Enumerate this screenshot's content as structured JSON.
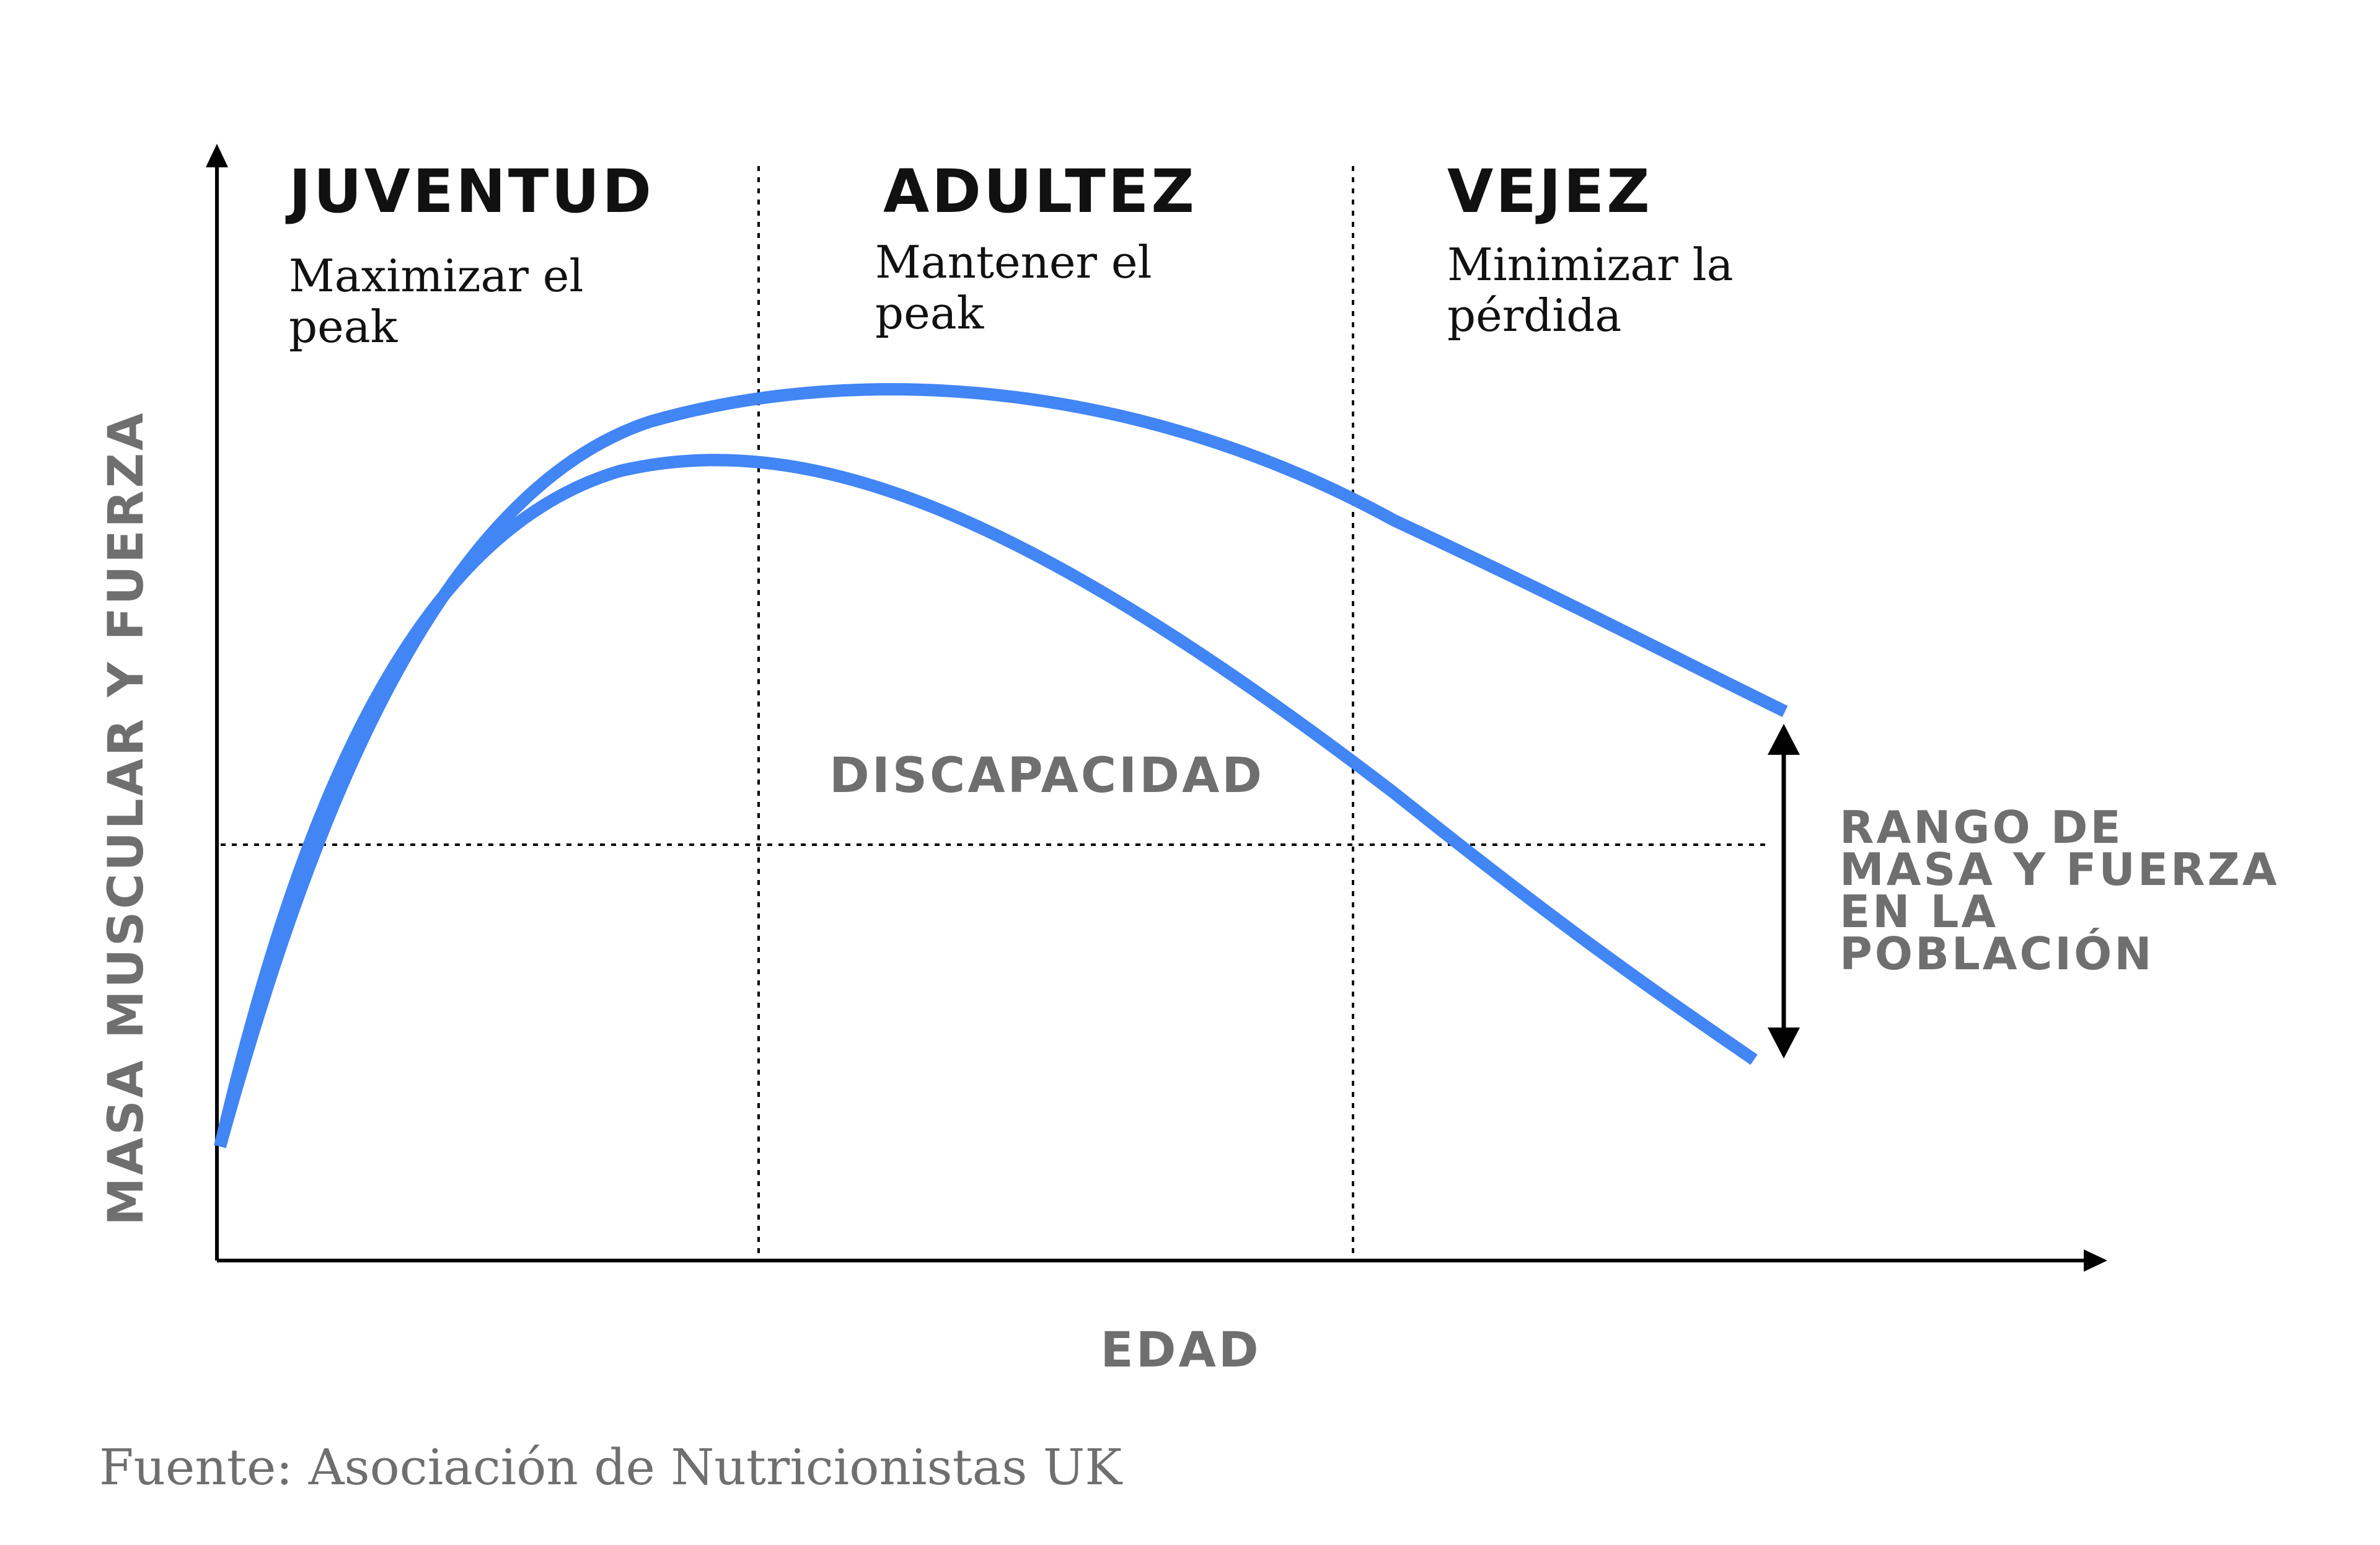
{
  "stages": [
    {
      "title": "JUVENTUD",
      "subtitle_lines": [
        "Maximizar el",
        "peak"
      ]
    },
    {
      "title": "ADULTEZ",
      "subtitle_lines": [
        "Mantener el",
        "peak"
      ]
    },
    {
      "title": "VEJEZ",
      "subtitle_lines": [
        "Minimizar la",
        "pérdida"
      ]
    }
  ],
  "axes": {
    "y_label": "MASA MUSCULAR Y FUERZA",
    "x_label": "EDAD"
  },
  "threshold_label": "DISCAPACIDAD",
  "range_label_lines": [
    "RANGO DE",
    "MASA Y FUERZA",
    "EN LA",
    "POBLACIÓN"
  ],
  "source": "Fuente: Asociación de Nutricionistas UK",
  "colors": {
    "curve": "#4285f4",
    "axis": "#000000",
    "gray_text": "#6f6f6f"
  }
}
